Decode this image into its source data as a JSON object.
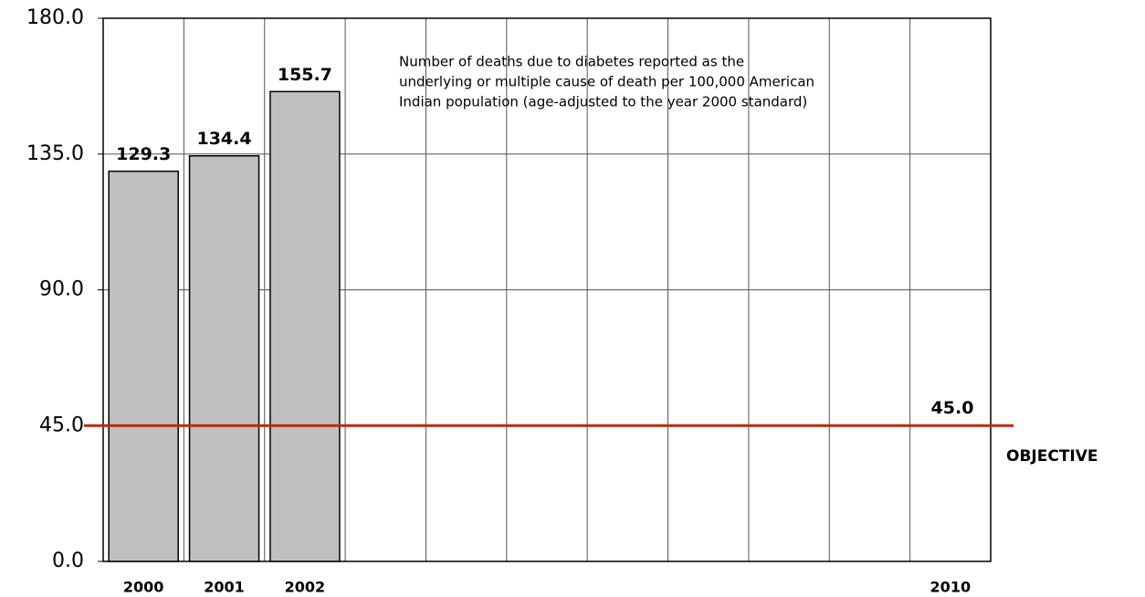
{
  "chart_data": {
    "type": "bar",
    "annotation": [
      "Number of deaths due to diabetes reported as the",
      "underlying or multiple cause of death per 100,000 American",
      "Indian population (age-adjusted to the year 2000 standard)"
    ],
    "categories": [
      "2000",
      "2001",
      "2002",
      null,
      null,
      null,
      null,
      null,
      null,
      null,
      "2010"
    ],
    "values": [
      129.3,
      134.4,
      155.7,
      null,
      null,
      null,
      null,
      null,
      null,
      null,
      null
    ],
    "color": "#c0c0c0",
    "ylim": [
      0,
      180
    ],
    "yticks": [
      {
        "value": 0,
        "label": "0.0"
      },
      {
        "value": 45,
        "label": "45.0"
      },
      {
        "value": 90,
        "label": "90.0"
      },
      {
        "value": 135,
        "label": "135.0"
      },
      {
        "value": 180,
        "label": "180.0"
      }
    ],
    "grid": true,
    "objective": {
      "value": 45,
      "value_label": "45.0",
      "label": "OBJECTIVE",
      "color": "#c0280f"
    }
  }
}
